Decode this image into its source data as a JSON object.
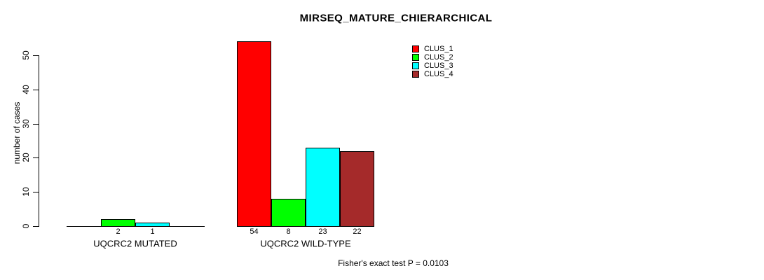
{
  "chart_data": {
    "type": "bar",
    "title": "MIRSEQ_MATURE_CHIERARCHICAL",
    "xlabel": "",
    "ylabel": "number of cases",
    "ylim": [
      0,
      55
    ],
    "yticks": [
      0,
      10,
      20,
      30,
      40,
      50
    ],
    "grid": false,
    "legend_position": "top-right",
    "categories": [
      "UQCRC2 MUTATED",
      "UQCRC2 WILD-TYPE"
    ],
    "series": [
      {
        "name": "CLUS_1",
        "color": "#ff0000",
        "values": [
          0,
          54
        ]
      },
      {
        "name": "CLUS_2",
        "color": "#00ff00",
        "values": [
          2,
          8
        ]
      },
      {
        "name": "CLUS_3",
        "color": "#00ffff",
        "values": [
          1,
          23
        ]
      },
      {
        "name": "CLUS_4",
        "color": "#a52a2a",
        "values": [
          0,
          22
        ]
      }
    ],
    "bar_value_labels": [
      [
        "",
        "2",
        "1",
        ""
      ],
      [
        "54",
        "8",
        "23",
        "22"
      ]
    ],
    "annotation": "Fisher's exact test P = 0.0103"
  }
}
